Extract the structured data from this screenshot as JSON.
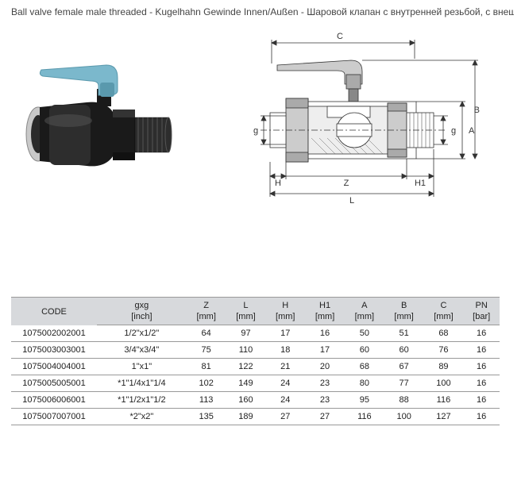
{
  "title": "Ball valve female male threaded - Kugelhahn Gewinde Innen/Außen - Шаровой клапан с внутренней резьбой, с внешней резьбой",
  "diagram": {
    "labels": {
      "C": "C",
      "B": "B",
      "A": "A",
      "H": "H",
      "Z": "Z",
      "H1": "H1",
      "L": "L",
      "g": "g",
      "g2": "g"
    },
    "colors": {
      "body_dark": "#1a1a1a",
      "body_mid": "#2d2d2d",
      "body_highlight": "#555",
      "thread_silver": "#c9c9c9",
      "handle_blue": "#7bb8cc",
      "handle_blue_dark": "#5a99ad",
      "tech_line": "#333",
      "tech_fill_dark": "#555",
      "tech_fill_mid": "#888",
      "tech_fill_light": "#ccc"
    }
  },
  "table": {
    "columns": [
      {
        "h1": "CODE",
        "h2": ""
      },
      {
        "h1": "gxg",
        "h2": "[inch]"
      },
      {
        "h1": "Z",
        "h2": "[mm]"
      },
      {
        "h1": "L",
        "h2": "[mm]"
      },
      {
        "h1": "H",
        "h2": "[mm]"
      },
      {
        "h1": "H1",
        "h2": "[mm]"
      },
      {
        "h1": "A",
        "h2": "[mm]"
      },
      {
        "h1": "B",
        "h2": "[mm]"
      },
      {
        "h1": "C",
        "h2": "[mm]"
      },
      {
        "h1": "PN",
        "h2": "[bar]"
      }
    ],
    "rows": [
      [
        "1075002002001",
        "1/2\"x1/2\"",
        "64",
        "97",
        "17",
        "16",
        "50",
        "51",
        "68",
        "16"
      ],
      [
        "1075003003001",
        "3/4\"x3/4\"",
        "75",
        "110",
        "18",
        "17",
        "60",
        "60",
        "76",
        "16"
      ],
      [
        "1075004004001",
        "1\"x1\"",
        "81",
        "122",
        "21",
        "20",
        "68",
        "67",
        "89",
        "16"
      ],
      [
        "1075005005001",
        "*1\"1/4x1\"1/4",
        "102",
        "149",
        "24",
        "23",
        "80",
        "77",
        "100",
        "16"
      ],
      [
        "1075006006001",
        "*1\"1/2x1\"1/2",
        "113",
        "160",
        "24",
        "23",
        "95",
        "88",
        "116",
        "16"
      ],
      [
        "1075007007001",
        "*2\"x2\"",
        "135",
        "189",
        "27",
        "27",
        "116",
        "100",
        "127",
        "16"
      ]
    ]
  }
}
